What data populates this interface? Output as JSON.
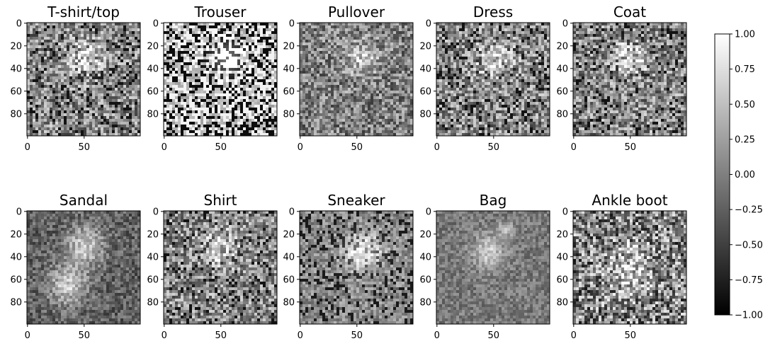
{
  "chart_data": {
    "type": "heatmap",
    "colormap": "gray",
    "panels": [
      {
        "title": "T-shirt/top",
        "pattern": "tshirt"
      },
      {
        "title": "Trouser",
        "pattern": "trouser"
      },
      {
        "title": "Pullover",
        "pattern": "pullover"
      },
      {
        "title": "Dress",
        "pattern": "dress"
      },
      {
        "title": "Coat",
        "pattern": "coat"
      },
      {
        "title": "Sandal",
        "pattern": "sandal"
      },
      {
        "title": "Shirt",
        "pattern": "shirt"
      },
      {
        "title": "Sneaker",
        "pattern": "sneaker"
      },
      {
        "title": "Bag",
        "pattern": "bag"
      },
      {
        "title": "Ankle boot",
        "pattern": "boot"
      }
    ],
    "image_size": [
      100,
      100
    ],
    "x_ticks": [
      {
        "value": 0,
        "label": "0"
      },
      {
        "value": 50,
        "label": "50"
      }
    ],
    "y_ticks": [
      {
        "value": 0,
        "label": "0"
      },
      {
        "value": 20,
        "label": "20"
      },
      {
        "value": 40,
        "label": "40"
      },
      {
        "value": 60,
        "label": "60"
      },
      {
        "value": 80,
        "label": "80"
      }
    ],
    "colorbar": {
      "range": [
        -1.0,
        1.0
      ],
      "ticks": [
        {
          "value": 1.0,
          "label": "1.00"
        },
        {
          "value": 0.75,
          "label": "0.75"
        },
        {
          "value": 0.5,
          "label": "0.50"
        },
        {
          "value": 0.25,
          "label": "0.25"
        },
        {
          "value": 0.0,
          "label": "0.00"
        },
        {
          "value": -0.25,
          "label": "−0.25"
        },
        {
          "value": -0.5,
          "label": "−0.50"
        },
        {
          "value": -0.75,
          "label": "−0.75"
        },
        {
          "value": -1.0,
          "label": "−1.00"
        }
      ]
    }
  }
}
